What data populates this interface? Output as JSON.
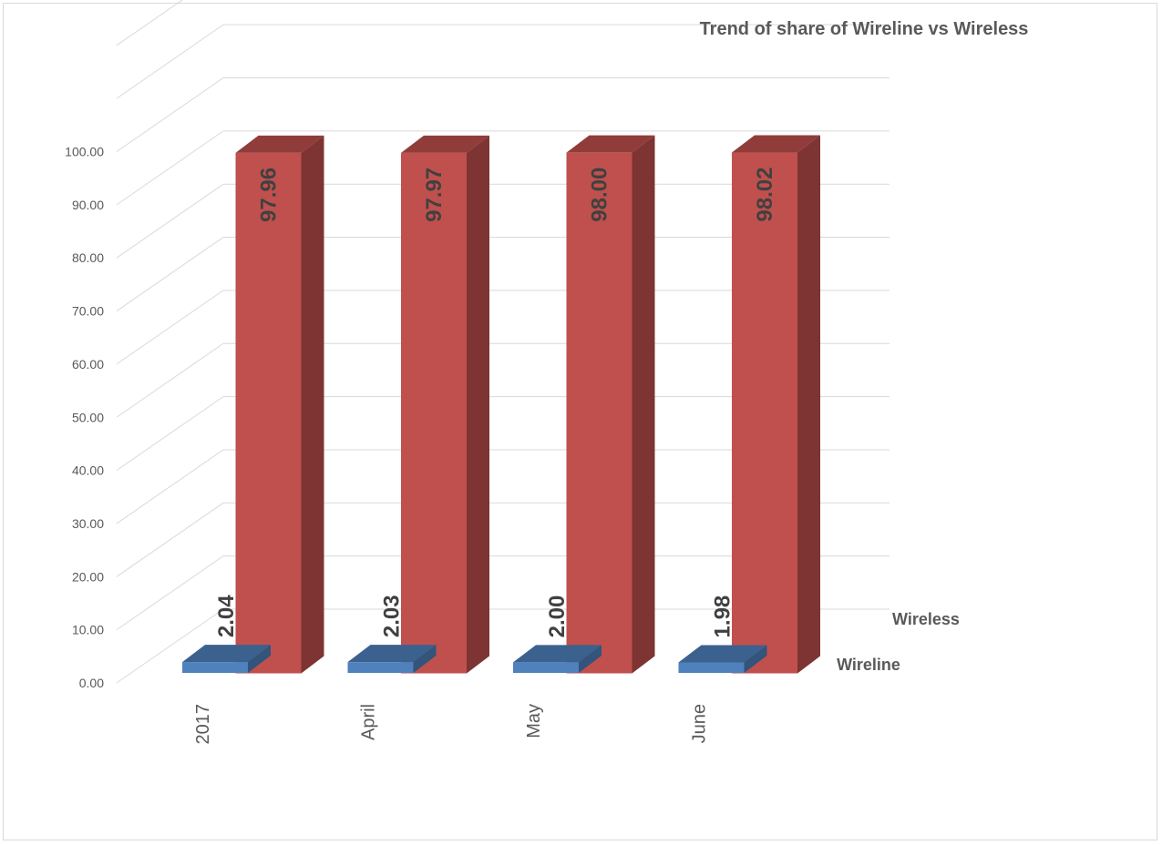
{
  "chart_data": {
    "type": "bar",
    "title": "Trend of  share of Wireline vs Wireless",
    "categories": [
      "2017",
      "April",
      "May",
      "June"
    ],
    "series": [
      {
        "name": "Wireline",
        "values": [
          2.04,
          2.03,
          2.0,
          1.98
        ],
        "color": "#4f81bd",
        "labels": [
          "2.04",
          "2.03",
          "2.00",
          "1.98"
        ]
      },
      {
        "name": "Wireless",
        "values": [
          97.96,
          97.97,
          98.0,
          98.02
        ],
        "color": "#c0504d",
        "labels": [
          "97.96",
          "97.97",
          "98.00",
          "98.02"
        ]
      }
    ],
    "yticks": [
      "0.00",
      "10.00",
      "20.00",
      "30.00",
      "40.00",
      "50.00",
      "60.00",
      "70.00",
      "80.00",
      "90.00",
      "100.00"
    ],
    "ylim": [
      0,
      100
    ],
    "grid": true,
    "style": "3d-column"
  }
}
